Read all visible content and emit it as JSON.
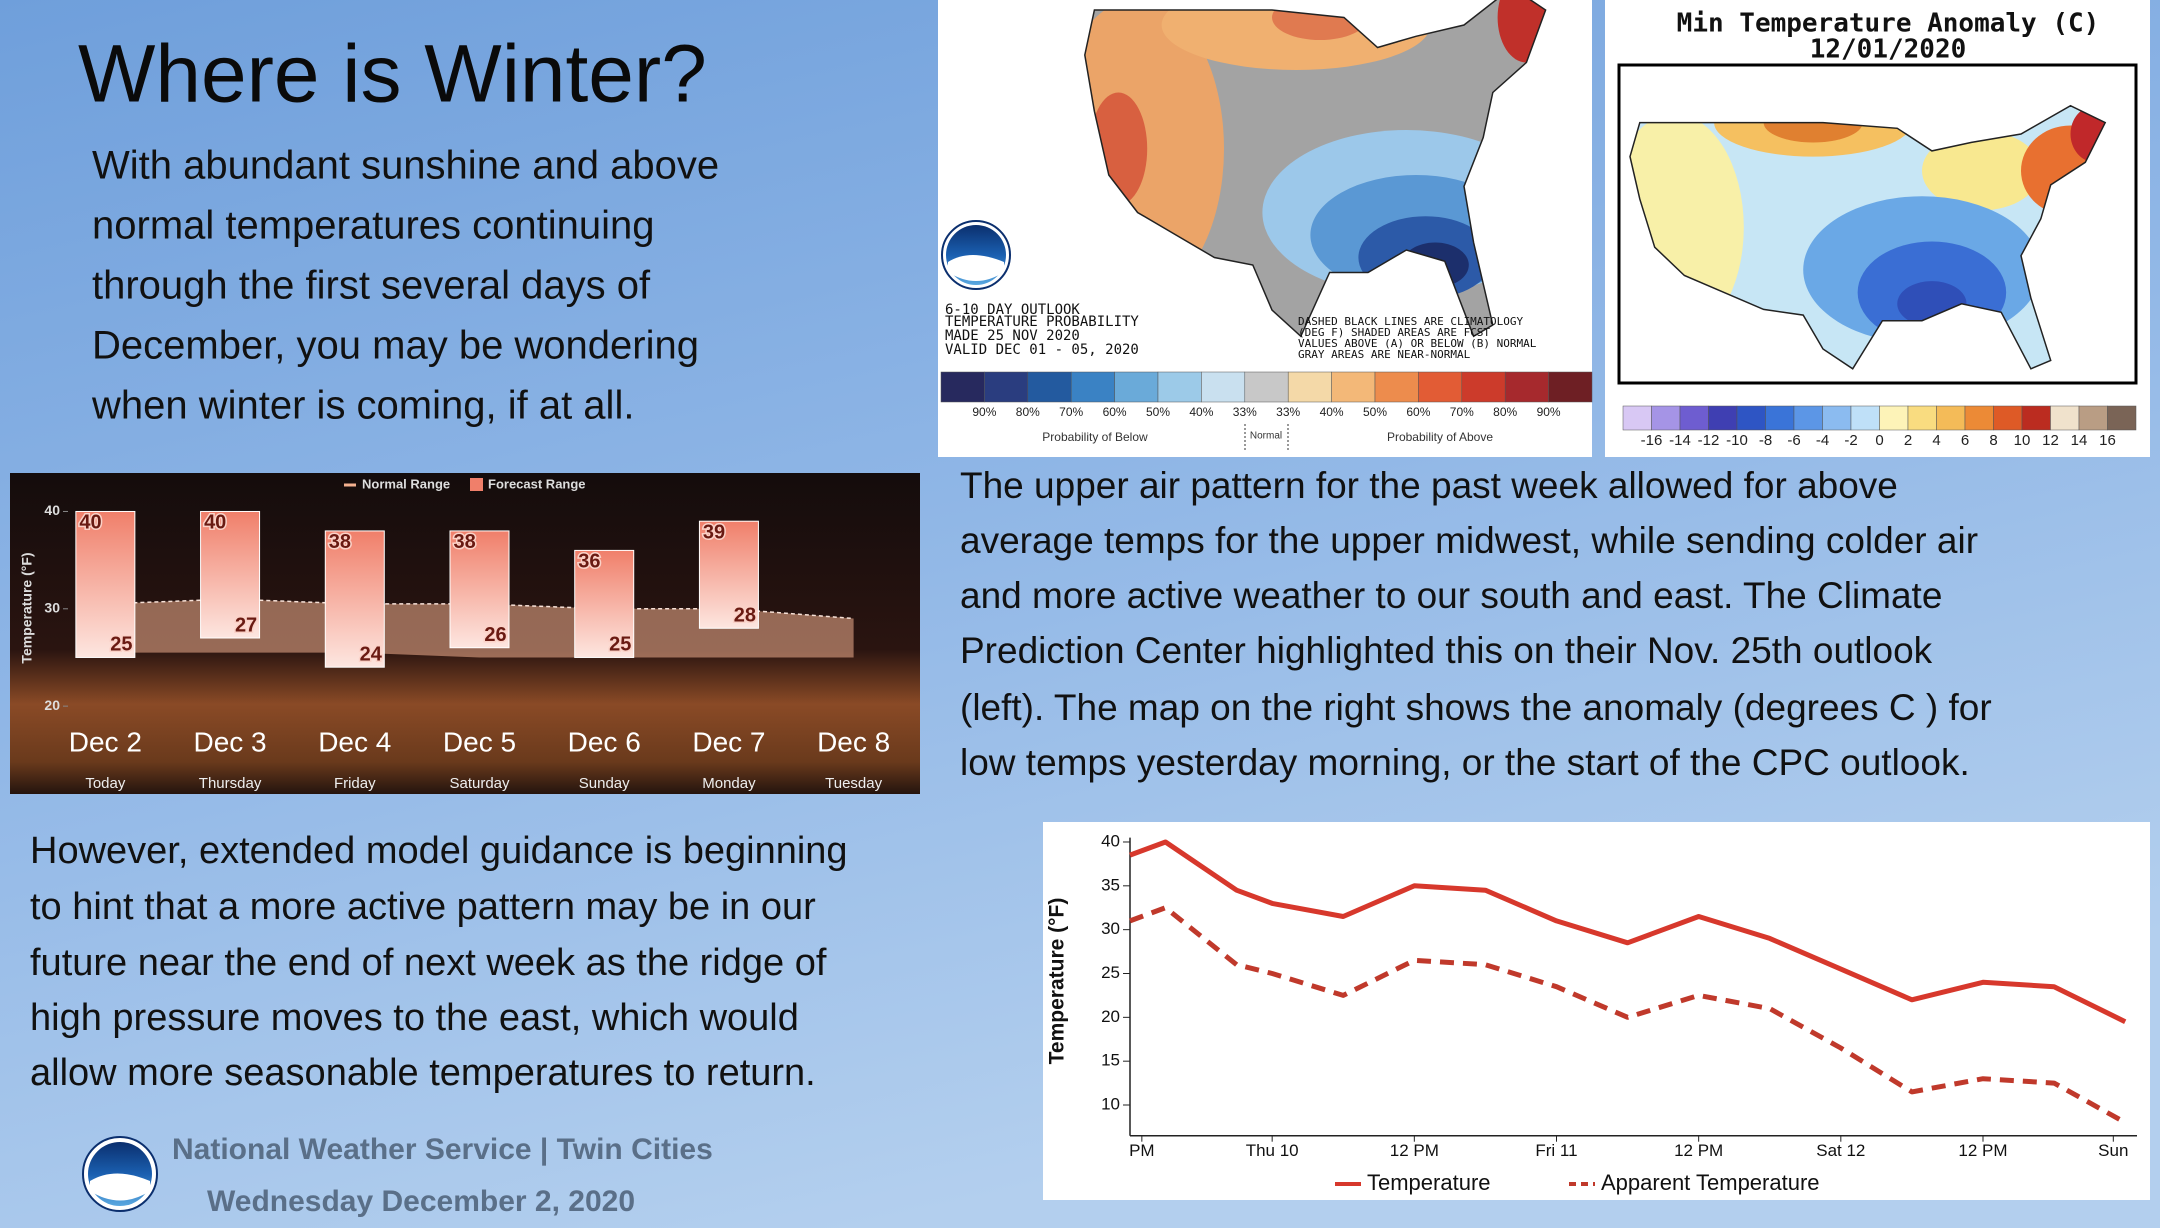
{
  "header": {
    "title": "Where is Winter?"
  },
  "intro": {
    "lines": [
      "With abundant sunshine and above",
      "normal temperatures continuing",
      "through the first several days of",
      "December, you may be wondering",
      "when winter is coming, if at all."
    ]
  },
  "cpc_map": {
    "lines": [
      "6-10 DAY OUTLOOK",
      "TEMPERATURE PROBABILITY",
      "MADE 25 NOV 2020",
      "VALID DEC 01 - 05, 2020"
    ],
    "notes": [
      "DASHED BLACK LINES ARE CLIMATOLOGY",
      "(DEG F) SHADED AREAS ARE FCST",
      "VALUES ABOVE (A) OR BELOW (B) NORMAL",
      "GRAY AREAS ARE NEAR-NORMAL"
    ],
    "legend": {
      "colors": [
        "#27295e",
        "#2a3d7f",
        "#235a9f",
        "#3a82c4",
        "#6aaad9",
        "#9ccae8",
        "#c9e0ef",
        "#c8c8c8",
        "#f4d9a8",
        "#f3b878",
        "#ed8c4d",
        "#e25c35",
        "#cc3b2b",
        "#a6292d",
        "#6e1f24"
      ],
      "labels": [
        "90%",
        "80%",
        "70%",
        "60%",
        "50%",
        "40%",
        "33%",
        "33%",
        "40%",
        "50%",
        "60%",
        "70%",
        "80%",
        "90%"
      ],
      "below": "Probability of Below",
      "normal": "Normal",
      "above": "Probability of Above"
    }
  },
  "anomaly_map": {
    "title": "Min Temperature Anomaly (C)",
    "date": "12/01/2020",
    "legend": {
      "colors": [
        "#d8c8f4",
        "#a594e6",
        "#6e5dd0",
        "#3f3fb2",
        "#2e55c4",
        "#3a74d8",
        "#5c96e6",
        "#8bbbf0",
        "#bfe0f8",
        "#fdf3b8",
        "#f9dc80",
        "#f4bb58",
        "#ec8a36",
        "#de5a26",
        "#bb2c20",
        "#f0e2cc",
        "#b99d84",
        "#7a6456"
      ],
      "labels": [
        "-16",
        "-14",
        "-12",
        "-10",
        "-8",
        "-6",
        "-4",
        "-2",
        "0",
        "2",
        "4",
        "6",
        "8",
        "10",
        "12",
        "14",
        "16"
      ]
    }
  },
  "pattern": {
    "lines": [
      "The upper air pattern for the past week allowed for above",
      "average temps for the upper midwest, while sending colder air",
      "and more active weather to our south and east. The Climate",
      "Prediction Center highlighted this on their Nov. 25th outlook",
      "(left). The map on the right shows the anomaly (degrees C ) for",
      "low temps yesterday morning, or the start of the CPC outlook."
    ]
  },
  "outlook": {
    "lines": [
      "However, extended model guidance is beginning",
      "to hint that a more active pattern may be in our",
      "future near the end of next week as the ridge of",
      "high pressure moves to the east, which would",
      "allow more seasonable temperatures to return."
    ]
  },
  "chart_data": [
    {
      "type": "range-bar",
      "y_label": "Temperature (°F)",
      "categories": [
        "Dec 2",
        "Dec 3",
        "Dec 4",
        "Dec 5",
        "Dec 6",
        "Dec 7",
        "Dec 8"
      ],
      "day_names": [
        "Today",
        "Thursday",
        "Friday",
        "Saturday",
        "Sunday",
        "Monday",
        "Tuesday"
      ],
      "series": [
        {
          "name": "Normal Range",
          "color": "#f3b08f",
          "high": [
            30.5,
            31,
            30.5,
            30.5,
            30,
            30,
            29
          ],
          "low": [
            25.5,
            25.5,
            25.5,
            25,
            25,
            25,
            25
          ]
        },
        {
          "name": "Forecast Range",
          "color": "#f07f6a",
          "high": [
            40,
            40,
            38,
            38,
            36,
            39,
            null
          ],
          "low": [
            25,
            27,
            24,
            26,
            25,
            28,
            null
          ]
        }
      ],
      "ylim": [
        12,
        42
      ],
      "yticks": [
        20,
        30,
        40
      ]
    },
    {
      "type": "line",
      "y_label": "Temperature (°F)",
      "x": [
        -12,
        -9,
        -3,
        0,
        6,
        12,
        18,
        24,
        30,
        36,
        42,
        48,
        54,
        60,
        66,
        72
      ],
      "xlim": [
        -12,
        73
      ],
      "xticks": [
        {
          "value": -11,
          "label": "PM"
        },
        {
          "value": 0,
          "label": "Thu 10"
        },
        {
          "value": 12,
          "label": "12 PM"
        },
        {
          "value": 24,
          "label": "Fri 11"
        },
        {
          "value": 36,
          "label": "12 PM"
        },
        {
          "value": 48,
          "label": "Sat 12"
        },
        {
          "value": 60,
          "label": "12 PM"
        },
        {
          "value": 71,
          "label": "Sun"
        }
      ],
      "ylim": [
        6.5,
        40.5
      ],
      "yticks": [
        10,
        15,
        20,
        25,
        30,
        35,
        40
      ],
      "series": [
        {
          "name": "Temperature",
          "color": "#d7382c",
          "dash": false,
          "values": [
            38.5,
            40,
            34.5,
            33,
            31.5,
            35,
            34.5,
            31,
            28.5,
            31.5,
            29,
            25.5,
            22,
            24,
            23.5,
            19.5
          ]
        },
        {
          "name": "Apparent Temperature",
          "color": "#c0392b",
          "dash": true,
          "values": [
            31,
            32.5,
            26,
            25,
            22.5,
            26.5,
            26,
            23.5,
            20,
            22.5,
            21,
            16.5,
            11.5,
            13,
            12.5,
            8
          ]
        }
      ]
    }
  ],
  "footer": {
    "office": "National Weather Service | Twin Cities",
    "date": "Wednesday December 2, 2020"
  }
}
